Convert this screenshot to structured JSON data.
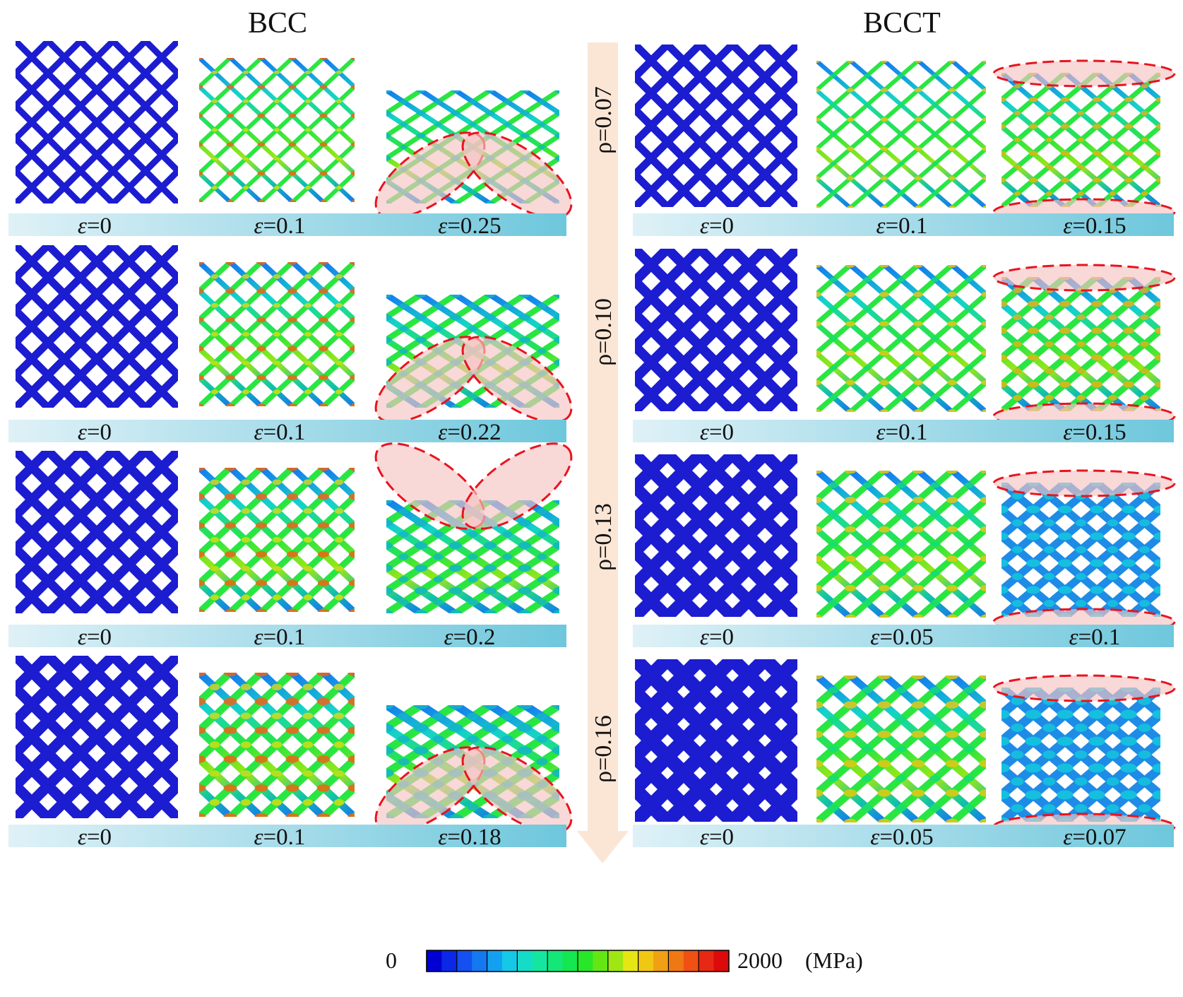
{
  "titles": {
    "left": "BCC",
    "right": "BCCT"
  },
  "density_symbol": "ρ",
  "strain_symbol": "ε",
  "rows": [
    {
      "density": "0.07",
      "bcc": {
        "strains": [
          "0",
          "0.1",
          "0.25"
        ],
        "failure_mode": "diagonal-shear-band"
      },
      "bcct": {
        "strains": [
          "0",
          "0.1",
          "0.15"
        ],
        "failure_mode": "top-bottom-crushing"
      }
    },
    {
      "density": "0.10",
      "bcc": {
        "strains": [
          "0",
          "0.1",
          "0.22"
        ],
        "failure_mode": "diagonal-shear-band"
      },
      "bcct": {
        "strains": [
          "0",
          "0.1",
          "0.15"
        ],
        "failure_mode": "top-bottom-crushing"
      }
    },
    {
      "density": "0.13",
      "bcc": {
        "strains": [
          "0",
          "0.1",
          "0.2"
        ],
        "failure_mode": "diagonal-shear-band-top"
      },
      "bcct": {
        "strains": [
          "0",
          "0.05",
          "0.1"
        ],
        "failure_mode": "top-bottom-crushing"
      }
    },
    {
      "density": "0.16",
      "bcc": {
        "strains": [
          "0",
          "0.1",
          "0.18"
        ],
        "failure_mode": "diagonal-shear-band"
      },
      "bcct": {
        "strains": [
          "0",
          "0.05",
          "0.07"
        ],
        "failure_mode": "top-bottom-crushing"
      }
    }
  ],
  "colorbar": {
    "min_label": "0",
    "max_label": "2000",
    "unit": "(MPa)",
    "min": 0,
    "max": 2000,
    "colors": [
      "#0000d2",
      "#0a28e6",
      "#1450f0",
      "#1478f0",
      "#14a0f0",
      "#14c8e6",
      "#14dcc8",
      "#14e6a0",
      "#14e678",
      "#14e650",
      "#28e628",
      "#64e614",
      "#a0e614",
      "#e6e614",
      "#f0c814",
      "#f0a014",
      "#f07814",
      "#f05014",
      "#e62814",
      "#dc0a0a"
    ]
  },
  "style": {
    "strain_bar_light": "#dff1f7",
    "strain_bar_dark": "#6ec7dc",
    "density_arrow": "#fbe6d6",
    "highlight_stroke": "#e8141e",
    "highlight_fill": "#f6c3c3",
    "initial_lattice": "#1c1cd0"
  }
}
